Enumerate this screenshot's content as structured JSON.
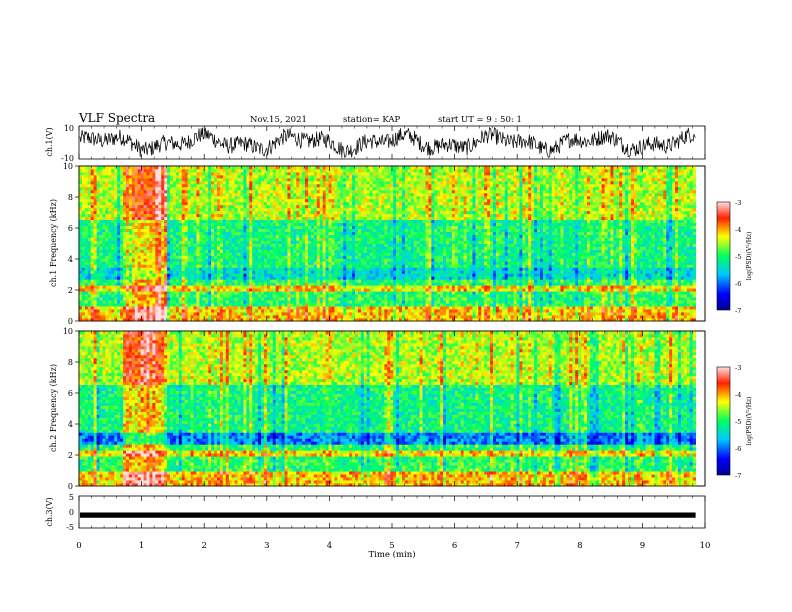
{
  "header": {
    "title": "VLF Spectra",
    "date": "Nov.15, 2021",
    "station": "station= KAP",
    "start": "start UT =  9 : 50: 1"
  },
  "chart_data": [
    {
      "type": "line",
      "panel": "ch1-waveform",
      "ylabel": "ch.1(V)",
      "ylim": [
        -10,
        10
      ],
      "yticks": [
        10,
        -10
      ],
      "xlim": [
        0,
        10
      ],
      "trace_range_min": [
        0,
        9.85
      ],
      "description_values": "continuous noisy signal roughly between -9 and +9 V"
    },
    {
      "type": "heatmap",
      "panel": "ch1-spectrogram",
      "ylabel": "ch.1 Frequency (kHz)",
      "ylim": [
        0,
        10
      ],
      "yticks": [
        0,
        2,
        4,
        6,
        8,
        10
      ],
      "xlim": [
        0,
        10
      ],
      "data_range_min": [
        0,
        9.85
      ],
      "colorbar": {
        "label": "log(PSD)(V²/Hz)",
        "range": [
          -7,
          -3
        ],
        "ticks": [
          -3,
          -4,
          -5,
          -6,
          -7
        ]
      },
      "high_power_burst_min": [
        0.7,
        1.4
      ]
    },
    {
      "type": "heatmap",
      "panel": "ch2-spectrogram",
      "ylabel": "ch.2 Frequency (kHz)",
      "ylim": [
        0,
        10
      ],
      "yticks": [
        0,
        2,
        4,
        6,
        8,
        10
      ],
      "xlim": [
        0,
        10
      ],
      "data_range_min": [
        0,
        9.85
      ],
      "colorbar": {
        "label": "log(PSD)(V²/Hz)",
        "range": [
          -7,
          -3
        ],
        "ticks": [
          -3,
          -4,
          -5,
          -6,
          -7
        ]
      },
      "high_power_burst_min": [
        0.7,
        1.4
      ]
    },
    {
      "type": "line",
      "panel": "ch3-waveform",
      "ylabel": "ch.3(V)",
      "ylim": [
        -5,
        5
      ],
      "yticks": [
        5,
        0,
        -5
      ],
      "xlim": [
        0,
        10
      ],
      "trace_range_min": [
        0,
        9.85
      ],
      "level_v": [
        -0.7,
        0.0
      ]
    }
  ],
  "xaxis": {
    "label": "Time (min)",
    "ticks": [
      "0",
      "1",
      "2",
      "3",
      "4",
      "5",
      "6",
      "7",
      "8",
      "9",
      "10"
    ]
  }
}
